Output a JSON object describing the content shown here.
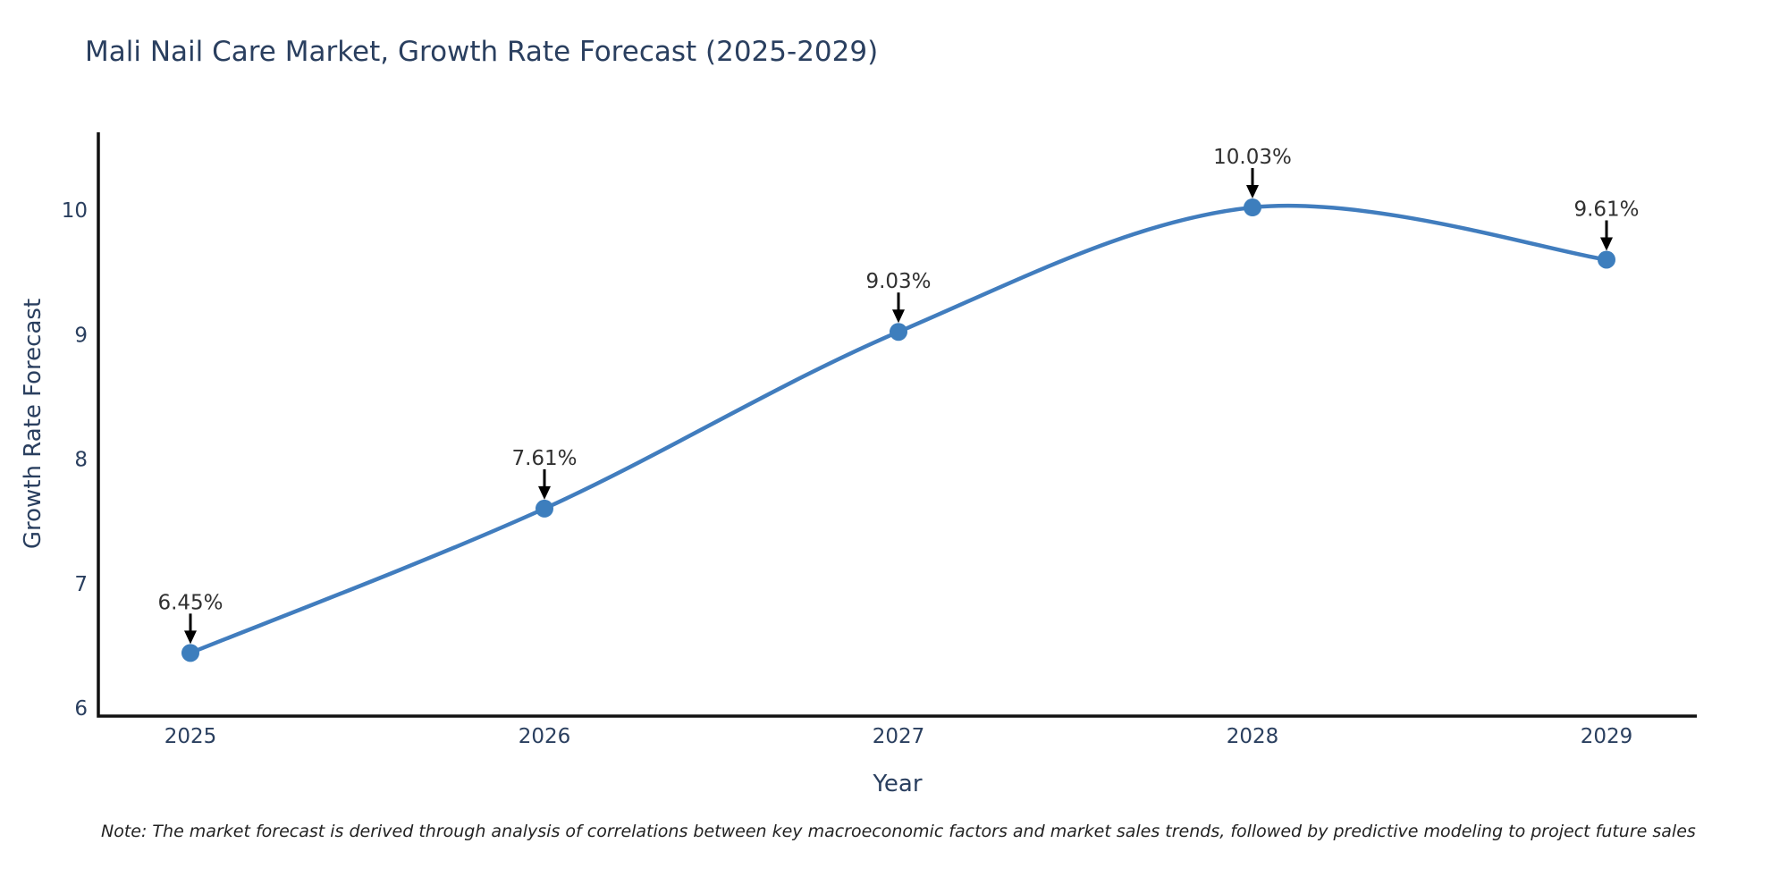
{
  "header": {
    "title": "Mali Nail Care Market, Growth Rate Forecast (2025-2029)"
  },
  "chart_data": {
    "type": "line",
    "title": "Mali Nail Care Market, Growth Rate Forecast (2025-2029)",
    "x": [
      2025,
      2026,
      2027,
      2028,
      2029
    ],
    "series": [
      {
        "name": "Growth Rate Forecast",
        "values": [
          6.45,
          7.61,
          9.03,
          10.03,
          9.61
        ]
      }
    ],
    "point_labels": [
      "6.45%",
      "7.61%",
      "9.03%",
      "10.03%",
      "9.61%"
    ],
    "xlabel": "Year",
    "ylabel": "Growth Rate Forecast",
    "yticks": [
      6,
      7,
      8,
      9,
      10
    ],
    "xticks": [
      "2025",
      "2026",
      "2027",
      "2028",
      "2029"
    ],
    "ylim": [
      6,
      10.6
    ],
    "grid": false,
    "legend_position": "none",
    "line_shape": "spline",
    "colors": {
      "line": "#417dbe",
      "marker": "#3d7ebd",
      "axis_spine": "#111111",
      "tick_text": "#2a3f5f",
      "axis_title_text": "#2a3f5f",
      "annotation_text": "#303030",
      "arrow": "#000000",
      "background": "#ffffff"
    }
  },
  "footnote": {
    "text": "Note: The market forecast is derived through analysis of correlations between key macroeconomic factors and market sales trends, followed by predictive modeling to project future sales"
  }
}
